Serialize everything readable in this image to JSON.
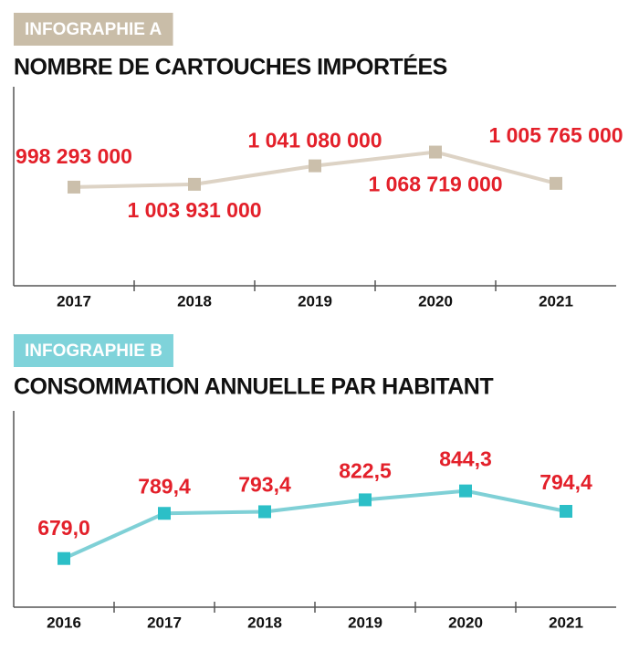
{
  "chart_data": [
    {
      "type": "line",
      "badge": "INFOGRAPHIE A",
      "title": "NOMBRE DE CARTOUCHES IMPORTÉES",
      "categories": [
        "2017",
        "2018",
        "2019",
        "2020",
        "2021"
      ],
      "values": [
        998293000,
        1003931000,
        1041080000,
        1068719000,
        1005765000
      ],
      "value_labels": [
        "998 293 000",
        "1 003 931 000",
        "1 041 080 000",
        "1 068 719 000",
        "1 005 765 000"
      ],
      "color": "#ddd3c5",
      "marker_color": "#cbbfab",
      "badge_color": "#c9bda8",
      "ylim": [
        800000000,
        1200000000
      ]
    },
    {
      "type": "line",
      "badge": "INFOGRAPHIE B",
      "title": "CONSOMMATION ANNUELLE PAR HABITANT",
      "categories": [
        "2016",
        "2017",
        "2018",
        "2019",
        "2020",
        "2021"
      ],
      "values": [
        679.0,
        789.4,
        793.4,
        822.5,
        844.3,
        794.4
      ],
      "value_labels": [
        "679,0",
        "789,4",
        "793,4",
        "822,5",
        "844,3",
        "794,4"
      ],
      "color": "#7fd0d6",
      "marker_color": "#2cbfc7",
      "badge_color": "#7fd3da",
      "ylim": [
        560,
        1040
      ]
    }
  ]
}
